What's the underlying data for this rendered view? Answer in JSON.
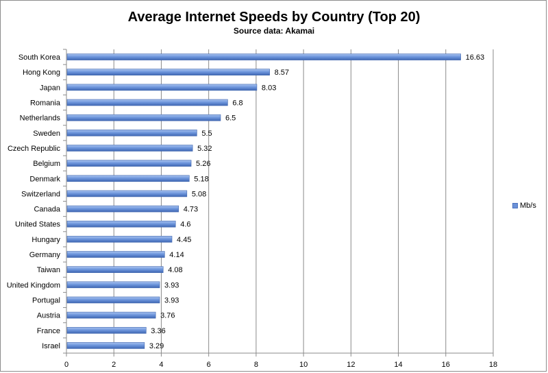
{
  "chart_data": {
    "type": "bar",
    "orientation": "horizontal",
    "title": "Average Internet Speeds by Country (Top 20)",
    "subtitle": "Source data: Akamai",
    "categories": [
      "South Korea",
      "Hong Kong",
      "Japan",
      "Romania",
      "Netherlands",
      "Sweden",
      "Czech Republic",
      "Belgium",
      "Denmark",
      "Switzerland",
      "Canada",
      "United States",
      "Hungary",
      "Germany",
      "Taiwan",
      "United Kingdom",
      "Portugal",
      "Austria",
      "France",
      "Israel"
    ],
    "series": [
      {
        "name": "Mb/s",
        "values": [
          16.63,
          8.57,
          8.03,
          6.8,
          6.5,
          5.5,
          5.32,
          5.26,
          5.18,
          5.08,
          4.73,
          4.6,
          4.45,
          4.14,
          4.08,
          3.93,
          3.93,
          3.76,
          3.36,
          3.29
        ],
        "labels": [
          "16.63",
          "8.57",
          "8.03",
          "6.8",
          "6.5",
          "5.5",
          "5.32",
          "5.26",
          "5.18",
          "5.08",
          "4.73",
          "4.6",
          "4.45",
          "4.14",
          "4.08",
          "3.93",
          "3.93",
          "3.76",
          "3.36",
          "3.29"
        ],
        "color": "#6c92d8"
      }
    ],
    "xlim": [
      0,
      18
    ],
    "xticks": [
      "0",
      "2",
      "4",
      "6",
      "8",
      "10",
      "12",
      "14",
      "16",
      "18"
    ],
    "grid": true,
    "legend": "right"
  }
}
